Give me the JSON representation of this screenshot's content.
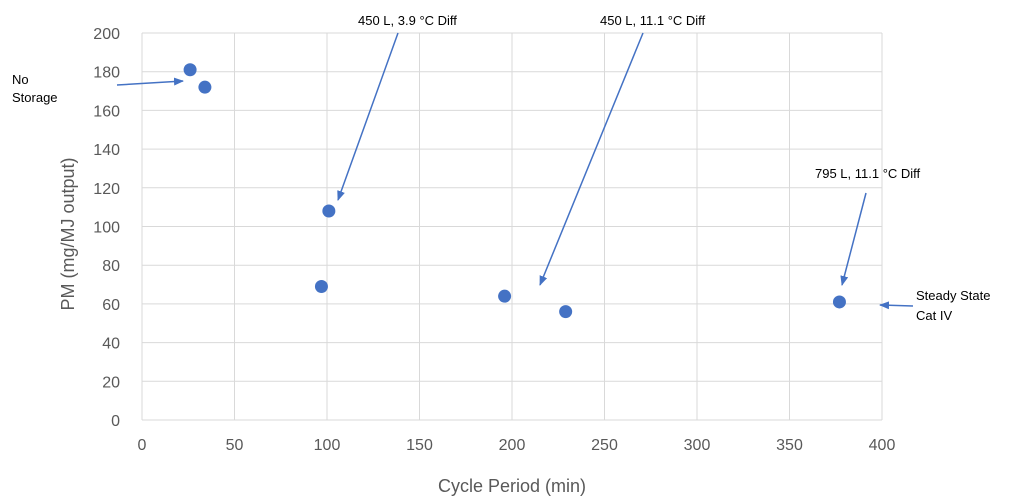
{
  "chart_data": {
    "type": "scatter",
    "xlabel": "Cycle Period (min)",
    "ylabel": "PM (mg/MJ output)",
    "xlim": [
      0,
      400
    ],
    "ylim": [
      0,
      200
    ],
    "x_ticks": [
      0,
      50,
      100,
      150,
      200,
      250,
      300,
      350,
      400
    ],
    "y_ticks": [
      0,
      20,
      40,
      60,
      80,
      100,
      120,
      140,
      160,
      180,
      200
    ],
    "grid": true,
    "color": "#4472c4",
    "points": [
      {
        "x": 26,
        "y": 181
      },
      {
        "x": 34,
        "y": 172
      },
      {
        "x": 101,
        "y": 108
      },
      {
        "x": 97,
        "y": 69
      },
      {
        "x": 196,
        "y": 64
      },
      {
        "x": 229,
        "y": 56
      },
      {
        "x": 377,
        "y": 61
      }
    ],
    "annotations": [
      {
        "lines": [
          "No",
          "Storage"
        ]
      },
      {
        "lines": [
          "450 L, 3.9 °C Diff"
        ]
      },
      {
        "lines": [
          "450 L, 11.1 °C Diff"
        ]
      },
      {
        "lines": [
          "795 L, 11.1 °C Diff"
        ]
      },
      {
        "lines": [
          "Steady State",
          "Cat IV"
        ]
      }
    ]
  }
}
